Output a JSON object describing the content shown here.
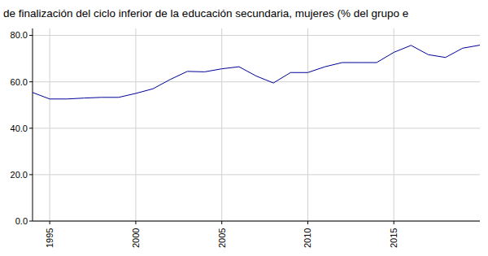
{
  "chart_data": {
    "type": "line",
    "title": "de finalización del ciclo inferior de la educación secundaria, mujeres (% del grupo e",
    "x": [
      1994,
      1995,
      1996,
      1997,
      1998,
      1999,
      2000,
      2001,
      2002,
      2003,
      2004,
      2005,
      2006,
      2007,
      2008,
      2009,
      2010,
      2011,
      2012,
      2013,
      2014,
      2015,
      2016,
      2017,
      2018,
      2019,
      2020
    ],
    "values": [
      55.4,
      52.6,
      52.6,
      53.0,
      53.3,
      53.3,
      55.0,
      57.0,
      61.0,
      64.5,
      64.3,
      65.6,
      66.5,
      62.5,
      59.5,
      64.0,
      64.0,
      66.5,
      68.3,
      68.3,
      68.3,
      72.7,
      75.7,
      71.7,
      70.5,
      74.5,
      75.8
    ],
    "color": "#000099",
    "xlim": [
      1994,
      2020
    ],
    "xticks": [
      1995,
      2000,
      2005,
      2010,
      2015
    ],
    "ylim": [
      0,
      83
    ],
    "yticks": [
      {
        "value": 0,
        "label": "0.0"
      },
      {
        "value": 20,
        "label": "20.0"
      },
      {
        "value": 40,
        "label": "40.0"
      },
      {
        "value": 60,
        "label": "60.0"
      },
      {
        "value": 80,
        "label": "80.0"
      }
    ],
    "grid": true
  }
}
